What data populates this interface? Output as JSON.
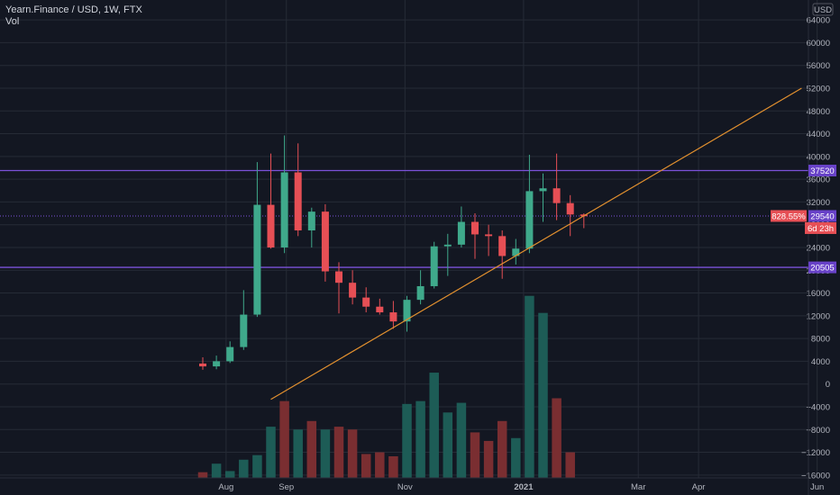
{
  "header": {
    "symbol_line": "Yearn.Finance / USD, 1W, FTX",
    "volume_label": "Vol"
  },
  "chart_data": {
    "type": "candlestick",
    "currency_label": "USD",
    "y_ticks": [
      64000,
      60000,
      56000,
      52000,
      48000,
      44000,
      40000,
      36000,
      32000,
      28000,
      24000,
      20000,
      16000,
      12000,
      8000,
      4000,
      0,
      -4000,
      -8000,
      -12000,
      -16000
    ],
    "y_tick_labels": [
      "64000",
      "60000",
      "56000",
      "52000",
      "48000",
      "44000",
      "40000",
      "36000",
      "32000",
      "28000",
      "24000",
      "20000",
      "16000",
      "12000",
      "8000",
      "4000",
      "0",
      "−4000",
      "−8000",
      "−12000",
      "−16000"
    ],
    "ylim": [
      -16500,
      67500
    ],
    "x_labels": [
      {
        "label": "Aug",
        "date": "2020-08-01"
      },
      {
        "label": "Sep",
        "date": "2020-09-01"
      },
      {
        "label": "Nov",
        "date": "2020-11-01"
      },
      {
        "label": "2021",
        "date": "2021-01-01",
        "bold": true
      },
      {
        "label": "Mar",
        "date": "2021-03-01"
      },
      {
        "label": "Apr",
        "date": "2021-04-01"
      },
      {
        "label": "Jun",
        "date": "2021-06-01"
      }
    ],
    "candles": [
      {
        "date": "2020-07-20",
        "open": 3600,
        "high": 4700,
        "low": 2500,
        "close": 3100
      },
      {
        "date": "2020-07-27",
        "open": 3100,
        "high": 5000,
        "low": 2600,
        "close": 4000
      },
      {
        "date": "2020-08-03",
        "open": 4000,
        "high": 7500,
        "low": 3700,
        "close": 6500
      },
      {
        "date": "2020-08-10",
        "open": 6500,
        "high": 16500,
        "low": 6000,
        "close": 12200
      },
      {
        "date": "2020-08-17",
        "open": 12200,
        "high": 39000,
        "low": 11800,
        "close": 31500
      },
      {
        "date": "2020-08-24",
        "open": 31500,
        "high": 40500,
        "low": 23800,
        "close": 24000
      },
      {
        "date": "2020-08-31",
        "open": 24000,
        "high": 43700,
        "low": 23000,
        "close": 37200
      },
      {
        "date": "2020-09-07",
        "open": 37200,
        "high": 42300,
        "low": 26000,
        "close": 27000
      },
      {
        "date": "2020-09-14",
        "open": 27000,
        "high": 31000,
        "low": 24000,
        "close": 30300
      },
      {
        "date": "2020-09-21",
        "open": 30300,
        "high": 31600,
        "low": 18000,
        "close": 19800
      },
      {
        "date": "2020-09-28",
        "open": 19800,
        "high": 21400,
        "low": 12400,
        "close": 17800
      },
      {
        "date": "2020-10-05",
        "open": 17800,
        "high": 20000,
        "low": 14000,
        "close": 15200
      },
      {
        "date": "2020-10-12",
        "open": 15200,
        "high": 17000,
        "low": 12600,
        "close": 13600
      },
      {
        "date": "2020-10-19",
        "open": 13600,
        "high": 15000,
        "low": 12200,
        "close": 12600
      },
      {
        "date": "2020-10-26",
        "open": 12600,
        "high": 14600,
        "low": 9700,
        "close": 11000
      },
      {
        "date": "2020-11-02",
        "open": 11000,
        "high": 15500,
        "low": 9200,
        "close": 14800
      },
      {
        "date": "2020-11-09",
        "open": 14800,
        "high": 20000,
        "low": 14000,
        "close": 17200
      },
      {
        "date": "2020-11-16",
        "open": 17200,
        "high": 25000,
        "low": 16800,
        "close": 24200
      },
      {
        "date": "2020-11-23",
        "open": 24200,
        "high": 26400,
        "low": 19000,
        "close": 24500
      },
      {
        "date": "2020-11-30",
        "open": 24500,
        "high": 31200,
        "low": 24000,
        "close": 28500
      },
      {
        "date": "2020-12-07",
        "open": 28500,
        "high": 30000,
        "low": 22000,
        "close": 26300
      },
      {
        "date": "2020-12-14",
        "open": 26300,
        "high": 28000,
        "low": 22500,
        "close": 26000
      },
      {
        "date": "2020-12-21",
        "open": 26000,
        "high": 27000,
        "low": 18500,
        "close": 22500
      },
      {
        "date": "2020-12-28",
        "open": 22500,
        "high": 25500,
        "low": 21000,
        "close": 23800
      },
      {
        "date": "2021-01-04",
        "open": 23800,
        "high": 40300,
        "low": 23000,
        "close": 33900
      },
      {
        "date": "2021-01-11",
        "open": 33900,
        "high": 37000,
        "low": 28500,
        "close": 34400
      },
      {
        "date": "2021-01-18",
        "open": 34400,
        "high": 40500,
        "low": 28800,
        "close": 31800
      },
      {
        "date": "2021-01-25",
        "open": 31800,
        "high": 33200,
        "low": 26000,
        "close": 29800
      },
      {
        "date": "2021-02-01",
        "open": 29800,
        "high": 30000,
        "low": 27400,
        "close": 29500
      }
    ],
    "volume_bars": [
      {
        "date": "2020-07-20",
        "height_price_units": 1000,
        "up": false
      },
      {
        "date": "2020-07-27",
        "height_price_units": 2500,
        "up": true
      },
      {
        "date": "2020-08-03",
        "height_price_units": 1200,
        "up": true
      },
      {
        "date": "2020-08-10",
        "height_price_units": 3200,
        "up": true
      },
      {
        "date": "2020-08-17",
        "height_price_units": 4000,
        "up": true
      },
      {
        "date": "2020-08-24",
        "height_price_units": 9000,
        "up": true
      },
      {
        "date": "2020-08-31",
        "height_price_units": 13500,
        "up": false
      },
      {
        "date": "2020-09-07",
        "height_price_units": 8500,
        "up": true
      },
      {
        "date": "2020-09-14",
        "height_price_units": 10000,
        "up": false
      },
      {
        "date": "2020-09-21",
        "height_price_units": 8500,
        "up": true
      },
      {
        "date": "2020-09-28",
        "height_price_units": 9000,
        "up": false
      },
      {
        "date": "2020-10-05",
        "height_price_units": 8500,
        "up": false
      },
      {
        "date": "2020-10-12",
        "height_price_units": 4200,
        "up": false
      },
      {
        "date": "2020-10-19",
        "height_price_units": 4500,
        "up": false
      },
      {
        "date": "2020-10-26",
        "height_price_units": 3800,
        "up": false
      },
      {
        "date": "2020-11-02",
        "height_price_units": 13000,
        "up": true
      },
      {
        "date": "2020-11-09",
        "height_price_units": 13500,
        "up": true
      },
      {
        "date": "2020-11-16",
        "height_price_units": 18500,
        "up": true
      },
      {
        "date": "2020-11-23",
        "height_price_units": 11500,
        "up": true
      },
      {
        "date": "2020-11-30",
        "height_price_units": 13200,
        "up": true
      },
      {
        "date": "2020-12-07",
        "height_price_units": 8000,
        "up": false
      },
      {
        "date": "2020-12-14",
        "height_price_units": 6500,
        "up": false
      },
      {
        "date": "2020-12-21",
        "height_price_units": 10000,
        "up": false
      },
      {
        "date": "2020-12-28",
        "height_price_units": 7000,
        "up": true
      },
      {
        "date": "2021-01-04",
        "height_price_units": 32000,
        "up": true
      },
      {
        "date": "2021-01-11",
        "height_price_units": 29000,
        "up": true
      },
      {
        "date": "2021-01-18",
        "height_price_units": 14000,
        "up": false
      },
      {
        "date": "2021-01-25",
        "height_price_units": 4500,
        "up": false
      }
    ],
    "horizontal_lines": [
      {
        "price": 37520,
        "label": "37520",
        "color": "#7b52d9"
      },
      {
        "price": 20505,
        "label": "20505",
        "color": "#7b52d9"
      }
    ],
    "current_price": {
      "price": 29540,
      "label": "29540",
      "change_label": "828.55%",
      "countdown_label": "6d 23h",
      "line_color": "#7b52d9"
    },
    "trendline": {
      "start": {
        "date": "2020-08-24",
        "price": -2700
      },
      "end": {
        "date": "2021-05-24",
        "price": 52000
      },
      "color": "#e2902f"
    },
    "colors": {
      "background": "#131722",
      "grid": "#262b36",
      "up": "#3fa98b",
      "down": "#e64f55",
      "volume_up": "#1d5c56",
      "volume_down": "#7a2e31",
      "axis_text": "#b2b5be",
      "label_purple": "#6842c8",
      "label_red": "#e64f55"
    }
  }
}
